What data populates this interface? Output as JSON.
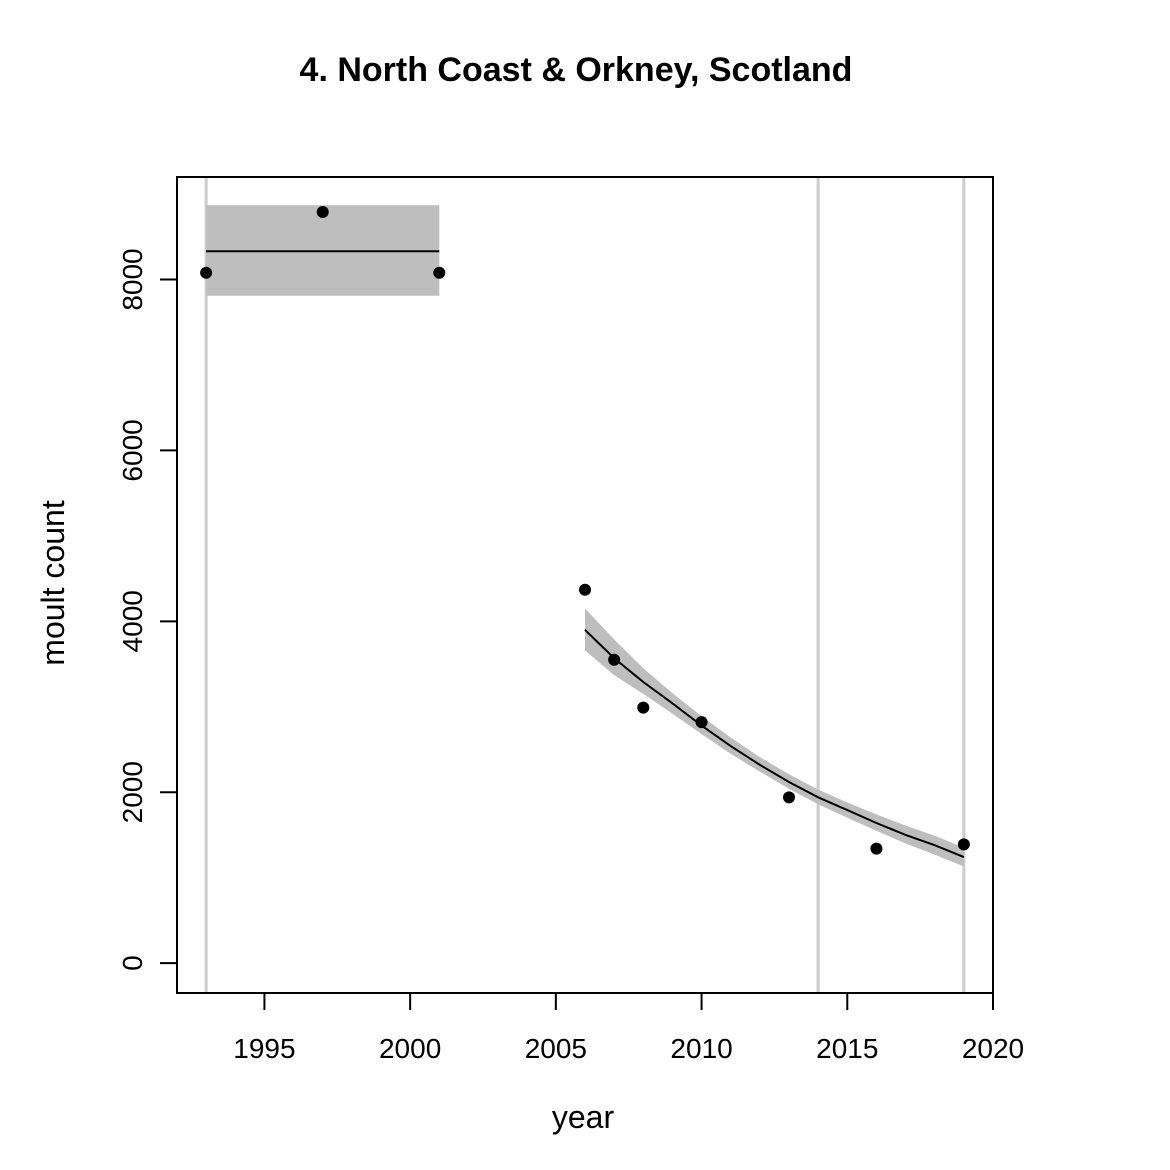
{
  "chart_data": {
    "type": "scatter",
    "title": "4. North Coast & Orkney, Scotland",
    "xlabel": "year",
    "ylabel": "moult count",
    "xlim": [
      1992,
      2020
    ],
    "ylim": [
      -350,
      9200
    ],
    "x_ticks": [
      "1995",
      "2000",
      "2005",
      "2010",
      "2015",
      "2020"
    ],
    "y_ticks": [
      "0",
      "2000",
      "4000",
      "6000",
      "8000"
    ],
    "grid": false,
    "vertical_reference_lines": [
      1993,
      2014,
      2019
    ],
    "series": [
      {
        "points": [
          {
            "x": 1993,
            "y": 8080
          },
          {
            "x": 1997,
            "y": 8790
          },
          {
            "x": 2001,
            "y": 8080
          },
          {
            "x": 2006,
            "y": 4370
          },
          {
            "x": 2007,
            "y": 3550
          },
          {
            "x": 2008,
            "y": 2990
          },
          {
            "x": 2010,
            "y": 2820
          },
          {
            "x": 2013,
            "y": 1940
          },
          {
            "x": 2016,
            "y": 1340
          },
          {
            "x": 2019,
            "y": 1390
          }
        ]
      }
    ],
    "fits": [
      {
        "kind": "flat",
        "x": [
          1993,
          2001
        ],
        "y": [
          8330,
          8330
        ],
        "ci_lower": [
          7810,
          7810
        ],
        "ci_upper": [
          8870,
          8870
        ]
      },
      {
        "kind": "exponential-decline",
        "x": [
          2006,
          2007,
          2008,
          2009,
          2010,
          2011,
          2012,
          2013,
          2014,
          2015,
          2016,
          2017,
          2018,
          2019
        ],
        "y": [
          3900,
          3570,
          3290,
          3040,
          2780,
          2540,
          2320,
          2120,
          1940,
          1790,
          1640,
          1500,
          1380,
          1240
        ],
        "ci_lower": [
          3660,
          3370,
          3150,
          2920,
          2680,
          2450,
          2240,
          2040,
          1860,
          1700,
          1550,
          1400,
          1270,
          1130
        ],
        "ci_upper": [
          4150,
          3790,
          3450,
          3160,
          2890,
          2640,
          2410,
          2210,
          2030,
          1880,
          1740,
          1610,
          1490,
          1350
        ]
      }
    ],
    "colors": {
      "points": "#000000",
      "fit_line": "#000000",
      "ci_band": "#bebebe",
      "reference_line": "#cccccc",
      "axis": "#000000"
    }
  }
}
